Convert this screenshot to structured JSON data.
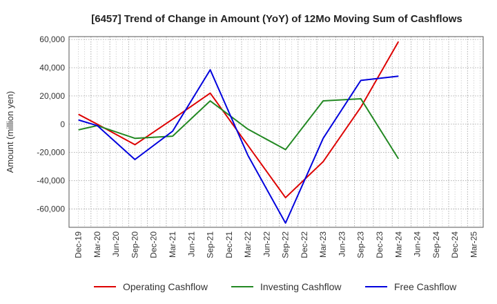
{
  "chart_data": {
    "type": "line",
    "title": "[6457]  Trend of Change in Amount (YoY) of 12Mo Moving Sum of Cashflows",
    "xlabel": "",
    "ylabel": "Amount (million yen)",
    "ylim": [
      -73000,
      62000
    ],
    "yticks": [
      -60000,
      -40000,
      -20000,
      0,
      20000,
      40000,
      60000
    ],
    "ytick_labels": [
      "-60,000",
      "-40,000",
      "-20,000",
      "0",
      "20,000",
      "40,000",
      "60,000"
    ],
    "grid": true,
    "legend_position": "bottom",
    "categories": [
      "Dec-19",
      "Mar-20",
      "Jun-20",
      "Sep-20",
      "Dec-20",
      "Mar-21",
      "Jun-21",
      "Sep-21",
      "Dec-21",
      "Mar-22",
      "Jun-22",
      "Sep-22",
      "Dec-22",
      "Mar-23",
      "Jun-23",
      "Sep-23",
      "Dec-23",
      "Mar-24",
      "Jun-24",
      "Sep-24",
      "Dec-24",
      "Mar-25"
    ],
    "series": [
      {
        "name": "Operating Cashflow",
        "color": "#dd0000",
        "values": [
          7000,
          0,
          null,
          -14500,
          null,
          3500,
          null,
          22000,
          null,
          -15000,
          null,
          -52000,
          null,
          -26500,
          null,
          12000,
          null,
          58500,
          null,
          null,
          null,
          null
        ]
      },
      {
        "name": "Investing Cashflow",
        "color": "#228822",
        "values": [
          -4000,
          -1000,
          null,
          -10000,
          null,
          -8500,
          null,
          16500,
          null,
          -3500,
          null,
          -18000,
          null,
          16500,
          null,
          18000,
          null,
          -24500,
          null,
          null,
          null,
          null
        ]
      },
      {
        "name": "Free Cashflow",
        "color": "#0000dd",
        "values": [
          3000,
          -1000,
          null,
          -25000,
          null,
          -5000,
          null,
          38500,
          null,
          -22000,
          null,
          -70000,
          null,
          -10000,
          null,
          31000,
          null,
          34000,
          null,
          null,
          null,
          null
        ]
      }
    ]
  }
}
